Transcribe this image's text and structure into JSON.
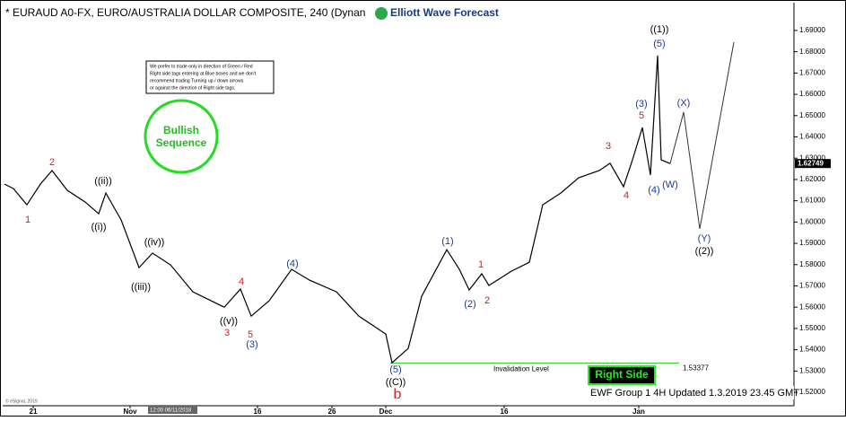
{
  "chart_data": {
    "type": "line",
    "title": "* EURAUD A0-FX, EURO/AUSTRALIA DOLLAR COMPOSITE, 240 (Dynan",
    "logo": "Elliott Wave Forecast",
    "x": [
      0,
      10,
      25,
      40,
      53,
      70,
      90,
      105,
      113,
      130,
      150,
      165,
      185,
      210,
      245,
      263,
      275,
      295,
      320,
      340,
      370,
      395,
      425,
      432,
      450,
      465,
      493,
      507,
      518,
      532,
      540,
      565,
      585,
      600,
      620,
      640,
      663,
      675,
      690,
      700,
      711,
      720,
      728,
      732,
      742
    ],
    "values": [
      1.6178,
      1.6157,
      1.6081,
      1.6178,
      1.6242,
      1.6149,
      1.6094,
      1.6039,
      1.6136,
      1.601,
      1.5786,
      1.5854,
      1.5799,
      1.5672,
      1.56,
      1.5685,
      1.5558,
      1.563,
      1.5778,
      1.5727,
      1.5672,
      1.5558,
      1.5474,
      1.5339,
      1.5406,
      1.5651,
      1.587,
      1.5778,
      1.5681,
      1.5757,
      1.5702,
      1.5769,
      1.5811,
      1.6081,
      1.6136,
      1.6208,
      1.6242,
      1.6276,
      1.6166,
      1.6292,
      1.6444,
      1.6221,
      1.6782,
      1.6292,
      1.6275
    ],
    "color": "#000000",
    "projection": {
      "x": [
        742,
        757,
        775,
        813
      ],
      "values": [
        1.6275,
        1.6516,
        1.5968,
        1.6845
      ],
      "color": "#333333"
    },
    "last_price": 1.62749,
    "invalidation": {
      "label": "Invalidation Level",
      "value": 1.53377,
      "color": "#22cc22"
    },
    "xlim": [
      0,
      880
    ],
    "xticks": [
      {
        "value": 32,
        "label": "21"
      },
      {
        "value": 140,
        "label": "Nov"
      },
      {
        "value": 282,
        "label": "16"
      },
      {
        "value": 365,
        "label": "26"
      },
      {
        "value": 425,
        "label": "Dec"
      },
      {
        "value": 557,
        "label": "16"
      },
      {
        "value": 707,
        "label": "Jan"
      }
    ],
    "ylim": [
      1.5137,
      1.7022
    ],
    "yticks": [
      {
        "value": 1.52,
        "label": "1.52000"
      },
      {
        "value": 1.53,
        "label": "1.53000"
      },
      {
        "value": 1.54,
        "label": "1.54000"
      },
      {
        "value": 1.55,
        "label": "1.55000"
      },
      {
        "value": 1.56,
        "label": "1.56000"
      },
      {
        "value": 1.57,
        "label": "1.57000"
      },
      {
        "value": 1.58,
        "label": "1.58000"
      },
      {
        "value": 1.59,
        "label": "1.59000"
      },
      {
        "value": 1.6,
        "label": "1.60000"
      },
      {
        "value": 1.61,
        "label": "1.61000"
      },
      {
        "value": 1.62,
        "label": "1.62000"
      },
      {
        "value": 1.63,
        "label": "1.63000"
      },
      {
        "value": 1.64,
        "label": "1.64000"
      },
      {
        "value": 1.65,
        "label": "1.65000"
      },
      {
        "value": 1.66,
        "label": "1.66000"
      },
      {
        "value": 1.67,
        "label": "1.67000"
      },
      {
        "value": 1.68,
        "label": "1.68000"
      },
      {
        "value": 1.69,
        "label": "1.69000"
      }
    ],
    "cursor_label": "12:00 06/11/2018",
    "copyright": "© eSignal, 2019",
    "note": [
      "We prefer to trade only in direction of Green / Red",
      "Right side tags entering at Blue boxes and we don't",
      "recommend trading Turning up / down arrows",
      "or against the direction of Right side tags."
    ],
    "badge": [
      "Bullish",
      "Sequence"
    ],
    "right_side": "Right Side",
    "footer": "EWF Group 1 4H Updated 1.3.2019 23.45 GMT",
    "annotations": [
      {
        "text": "1",
        "color": "#cc2222"
      },
      {
        "text": "2",
        "color": "#cc2222"
      },
      {
        "text": "((i))",
        "color": "#000000"
      },
      {
        "text": "((ii))",
        "color": "#000000"
      },
      {
        "text": "((iii))",
        "color": "#000000"
      },
      {
        "text": "((iv))",
        "color": "#000000"
      },
      {
        "text": "((v))",
        "color": "#000000"
      },
      {
        "text": "3",
        "color": "#cc2222"
      },
      {
        "text": "4",
        "color": "#cc2222"
      },
      {
        "text": "5",
        "color": "#cc2222"
      },
      {
        "text": "(3)",
        "color": "#1a3a9a"
      },
      {
        "text": "(4)",
        "color": "#1a3a9a"
      },
      {
        "text": "(5)",
        "color": "#1a3a9a"
      },
      {
        "text": "((C))",
        "color": "#000000"
      },
      {
        "text": "b",
        "color": "#cc2222"
      },
      {
        "text": "(1)",
        "color": "#1a3a9a"
      },
      {
        "text": "(2)",
        "color": "#1a3a9a"
      },
      {
        "text": "1",
        "color": "#cc2222"
      },
      {
        "text": "2",
        "color": "#cc2222"
      },
      {
        "text": "3",
        "color": "#cc2222"
      },
      {
        "text": "4",
        "color": "#cc2222"
      },
      {
        "text": "(3)",
        "color": "#1a3a9a"
      },
      {
        "text": "5",
        "color": "#cc2222"
      },
      {
        "text": "((1))",
        "color": "#000000"
      },
      {
        "text": "(5)",
        "color": "#1a3a9a"
      },
      {
        "text": "(4)",
        "color": "#1a3a9a"
      },
      {
        "text": "(W)",
        "color": "#1a3a9a"
      },
      {
        "text": "(X)",
        "color": "#1a3a9a"
      },
      {
        "text": "(Y)",
        "color": "#1a3a9a"
      },
      {
        "text": "((2))",
        "color": "#000000"
      }
    ]
  }
}
